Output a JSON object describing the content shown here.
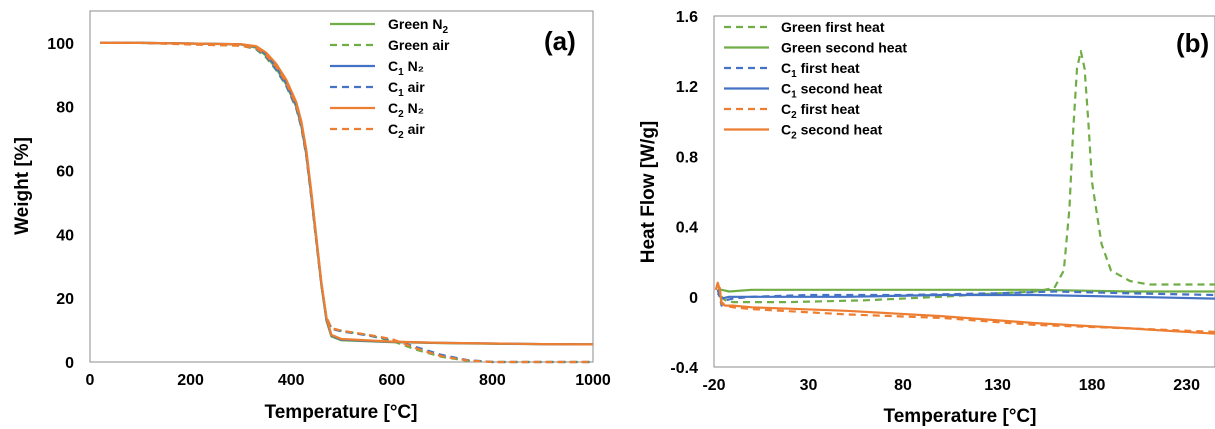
{
  "chart_data": [
    {
      "type": "line",
      "panel_label": "(a)",
      "xlabel": "Temperature [°C]",
      "ylabel": "Weight [%]",
      "xlim": [
        0,
        1000
      ],
      "ylim": [
        0,
        110
      ],
      "xticks": [
        "0",
        "200",
        "400",
        "600",
        "800",
        "1000"
      ],
      "yticks": [
        "0",
        "20",
        "40",
        "60",
        "80",
        "100"
      ],
      "legend_position": "top-right",
      "grid": false,
      "series": [
        {
          "name": "Green N2",
          "label_main": "Green N",
          "label_sub": "2",
          "label_suffix": "",
          "color": "#70ad47",
          "dash": "solid",
          "x": [
            20,
            100,
            200,
            300,
            330,
            350,
            370,
            390,
            410,
            420,
            430,
            440,
            450,
            460,
            470,
            480,
            500,
            600,
            700,
            800,
            900,
            1000
          ],
          "y": [
            100,
            100,
            99.8,
            99.5,
            98.5,
            96,
            92,
            87,
            80,
            74,
            65,
            52,
            38,
            24,
            13,
            8,
            6.8,
            6.2,
            5.9,
            5.7,
            5.6,
            5.5
          ]
        },
        {
          "name": "Green air",
          "label_main": "Green air",
          "label_sub": "",
          "label_suffix": "",
          "color": "#70ad47",
          "dash": "dashed",
          "x": [
            20,
            100,
            200,
            300,
            330,
            350,
            370,
            390,
            410,
            420,
            430,
            440,
            450,
            460,
            470,
            480,
            500,
            550,
            600,
            650,
            700,
            750,
            800,
            1000
          ],
          "y": [
            100,
            100,
            99.6,
            99.2,
            98,
            95.5,
            91.5,
            86.5,
            79.5,
            73.5,
            64.5,
            51.5,
            37.5,
            24,
            14,
            10.5,
            9.8,
            8.5,
            6.6,
            3.8,
            1.6,
            0.4,
            0,
            0
          ]
        },
        {
          "name": "C1 N2",
          "label_main": "C",
          "label_sub": "1",
          "label_suffix": " N₂",
          "color": "#4472c4",
          "dash": "solid",
          "x": [
            20,
            100,
            200,
            300,
            330,
            350,
            370,
            390,
            410,
            420,
            430,
            440,
            450,
            460,
            470,
            480,
            500,
            600,
            700,
            800,
            900,
            1000
          ],
          "y": [
            100,
            100,
            99.8,
            99.6,
            98.8,
            96.5,
            92.5,
            87.5,
            80.5,
            74.5,
            65.5,
            52.5,
            38.5,
            24.5,
            13.5,
            8.3,
            7,
            6.3,
            6,
            5.8,
            5.6,
            5.5
          ]
        },
        {
          "name": "C1 air",
          "label_main": "C",
          "label_sub": "1",
          "label_suffix": " air",
          "color": "#4472c4",
          "dash": "dashed",
          "x": [
            20,
            100,
            200,
            300,
            330,
            350,
            370,
            390,
            410,
            420,
            430,
            440,
            450,
            460,
            470,
            480,
            500,
            550,
            600,
            650,
            700,
            750,
            800,
            1000
          ],
          "y": [
            100,
            100,
            99.7,
            99.3,
            98.2,
            95.8,
            91.8,
            86.8,
            79.8,
            73.8,
            64.8,
            51.8,
            37.8,
            24.2,
            14,
            10.4,
            9.6,
            8.4,
            7,
            4.6,
            2.2,
            0.6,
            0,
            0
          ]
        },
        {
          "name": "C2 N2",
          "label_main": "C",
          "label_sub": "2",
          "label_suffix": " N₂",
          "color": "#ed7d31",
          "dash": "solid",
          "x": [
            20,
            100,
            200,
            300,
            330,
            350,
            370,
            390,
            410,
            420,
            430,
            440,
            450,
            460,
            470,
            480,
            500,
            600,
            700,
            800,
            900,
            1000
          ],
          "y": [
            100,
            100,
            99.8,
            99.6,
            99,
            97,
            93.5,
            88.5,
            81.5,
            75.5,
            66.5,
            53.5,
            39,
            25,
            14,
            8.5,
            7.2,
            6.4,
            6,
            5.8,
            5.6,
            5.5
          ]
        },
        {
          "name": "C2 air",
          "label_main": "C",
          "label_sub": "2",
          "label_suffix": " air",
          "color": "#ed7d31",
          "dash": "dashed",
          "x": [
            20,
            100,
            200,
            300,
            330,
            350,
            370,
            390,
            410,
            420,
            430,
            440,
            450,
            460,
            470,
            480,
            500,
            550,
            600,
            650,
            700,
            750,
            800,
            1000
          ],
          "y": [
            100,
            100,
            99.5,
            99.1,
            98.4,
            96.2,
            92.6,
            87.6,
            80.6,
            74.6,
            65.6,
            52.6,
            38.6,
            24.6,
            14.2,
            10.6,
            9.8,
            8.6,
            7.2,
            4.2,
            1.8,
            0.5,
            0,
            0
          ]
        }
      ]
    },
    {
      "type": "line",
      "panel_label": "(b)",
      "xlabel": "Temperature [°C]",
      "ylabel": "Heat Flow [W/g]",
      "xlim": [
        -20,
        245
      ],
      "ylim": [
        -0.4,
        1.6
      ],
      "xticks": [
        "-20",
        "30",
        "80",
        "130",
        "180",
        "230"
      ],
      "xtick_values": [
        -20,
        30,
        80,
        130,
        180,
        230
      ],
      "yticks": [
        "-0.4",
        "0",
        "0.4",
        "0.8",
        "1.2",
        "1.6"
      ],
      "ytick_values": [
        -0.4,
        0,
        0.4,
        0.8,
        1.2,
        1.6
      ],
      "legend_position": "top-left",
      "grid": false,
      "series": [
        {
          "name": "Green first heat",
          "label_main": "Green first heat",
          "label_sub": "",
          "label_suffix": "",
          "color": "#70ad47",
          "dash": "dashed",
          "x": [
            -18,
            -17,
            -16,
            -14,
            -10,
            0,
            20,
            60,
            100,
            130,
            150,
            160,
            165,
            168,
            170,
            172,
            174,
            176,
            178,
            180,
            185,
            190,
            200,
            210,
            220,
            245
          ],
          "y": [
            0.03,
            0.05,
            0.0,
            -0.02,
            -0.03,
            -0.03,
            -0.03,
            -0.02,
            0.0,
            0.02,
            0.03,
            0.05,
            0.15,
            0.5,
            0.95,
            1.3,
            1.4,
            1.3,
            1.0,
            0.65,
            0.3,
            0.15,
            0.09,
            0.07,
            0.07,
            0.07
          ]
        },
        {
          "name": "Green second heat",
          "label_main": "Green second heat",
          "label_sub": "",
          "label_suffix": "",
          "color": "#70ad47",
          "dash": "solid",
          "x": [
            -18,
            -16,
            -12,
            0,
            50,
            100,
            150,
            200,
            245
          ],
          "y": [
            0.03,
            0.04,
            0.03,
            0.04,
            0.04,
            0.04,
            0.04,
            0.03,
            0.03
          ]
        },
        {
          "name": "C1 first heat",
          "label_main": "C",
          "label_sub": "1",
          "label_suffix": " first heat",
          "color": "#4472c4",
          "dash": "dashed",
          "x": [
            -18,
            -16,
            -14,
            -10,
            0,
            30,
            80,
            130,
            160,
            200,
            245
          ],
          "y": [
            0.04,
            -0.05,
            -0.02,
            -0.01,
            0.0,
            0.01,
            0.01,
            0.02,
            0.03,
            0.02,
            0.01
          ]
        },
        {
          "name": "C1 second heat",
          "label_main": "C",
          "label_sub": "1",
          "label_suffix": " second heat",
          "color": "#4472c4",
          "dash": "solid",
          "x": [
            -18,
            -16,
            -12,
            0,
            50,
            100,
            150,
            200,
            245
          ],
          "y": [
            0.02,
            -0.01,
            0.0,
            0.0,
            0.0,
            0.01,
            0.01,
            0.0,
            -0.01
          ]
        },
        {
          "name": "C2 first heat",
          "label_main": "C",
          "label_sub": "2",
          "label_suffix": " first heat",
          "color": "#ed7d31",
          "dash": "dashed",
          "x": [
            -19,
            -18,
            -17,
            -16,
            -14,
            -10,
            0,
            50,
            100,
            150,
            200,
            245
          ],
          "y": [
            0.04,
            0.08,
            0.05,
            -0.03,
            -0.05,
            -0.06,
            -0.07,
            -0.1,
            -0.12,
            -0.16,
            -0.18,
            -0.2
          ]
        },
        {
          "name": "C2 second heat",
          "label_main": "C",
          "label_sub": "2",
          "label_suffix": " second heat",
          "color": "#ed7d31",
          "dash": "solid",
          "x": [
            -19,
            -18,
            -17,
            -16,
            -14,
            -10,
            0,
            50,
            100,
            150,
            200,
            245
          ],
          "y": [
            0.04,
            0.08,
            0.04,
            -0.04,
            -0.05,
            -0.05,
            -0.06,
            -0.08,
            -0.11,
            -0.15,
            -0.18,
            -0.21
          ]
        }
      ]
    }
  ]
}
